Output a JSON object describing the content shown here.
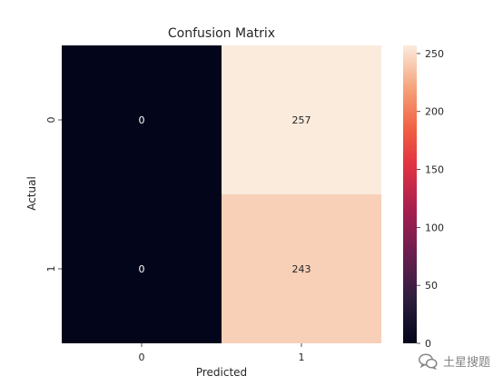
{
  "chart_data": {
    "type": "heatmap",
    "title": "Confusion Matrix",
    "xlabel": "Predicted",
    "ylabel": "Actual",
    "x_categories": [
      "0",
      "1"
    ],
    "y_categories": [
      "0",
      "1"
    ],
    "values": [
      [
        0,
        257
      ],
      [
        0,
        243
      ]
    ],
    "colormap": "rocket",
    "colorbar": {
      "min": 0,
      "max": 257,
      "ticks": [
        0,
        50,
        100,
        150,
        200,
        250
      ]
    }
  },
  "watermark": {
    "text": "土星搜题",
    "icon": "wechat-chat-icon"
  }
}
